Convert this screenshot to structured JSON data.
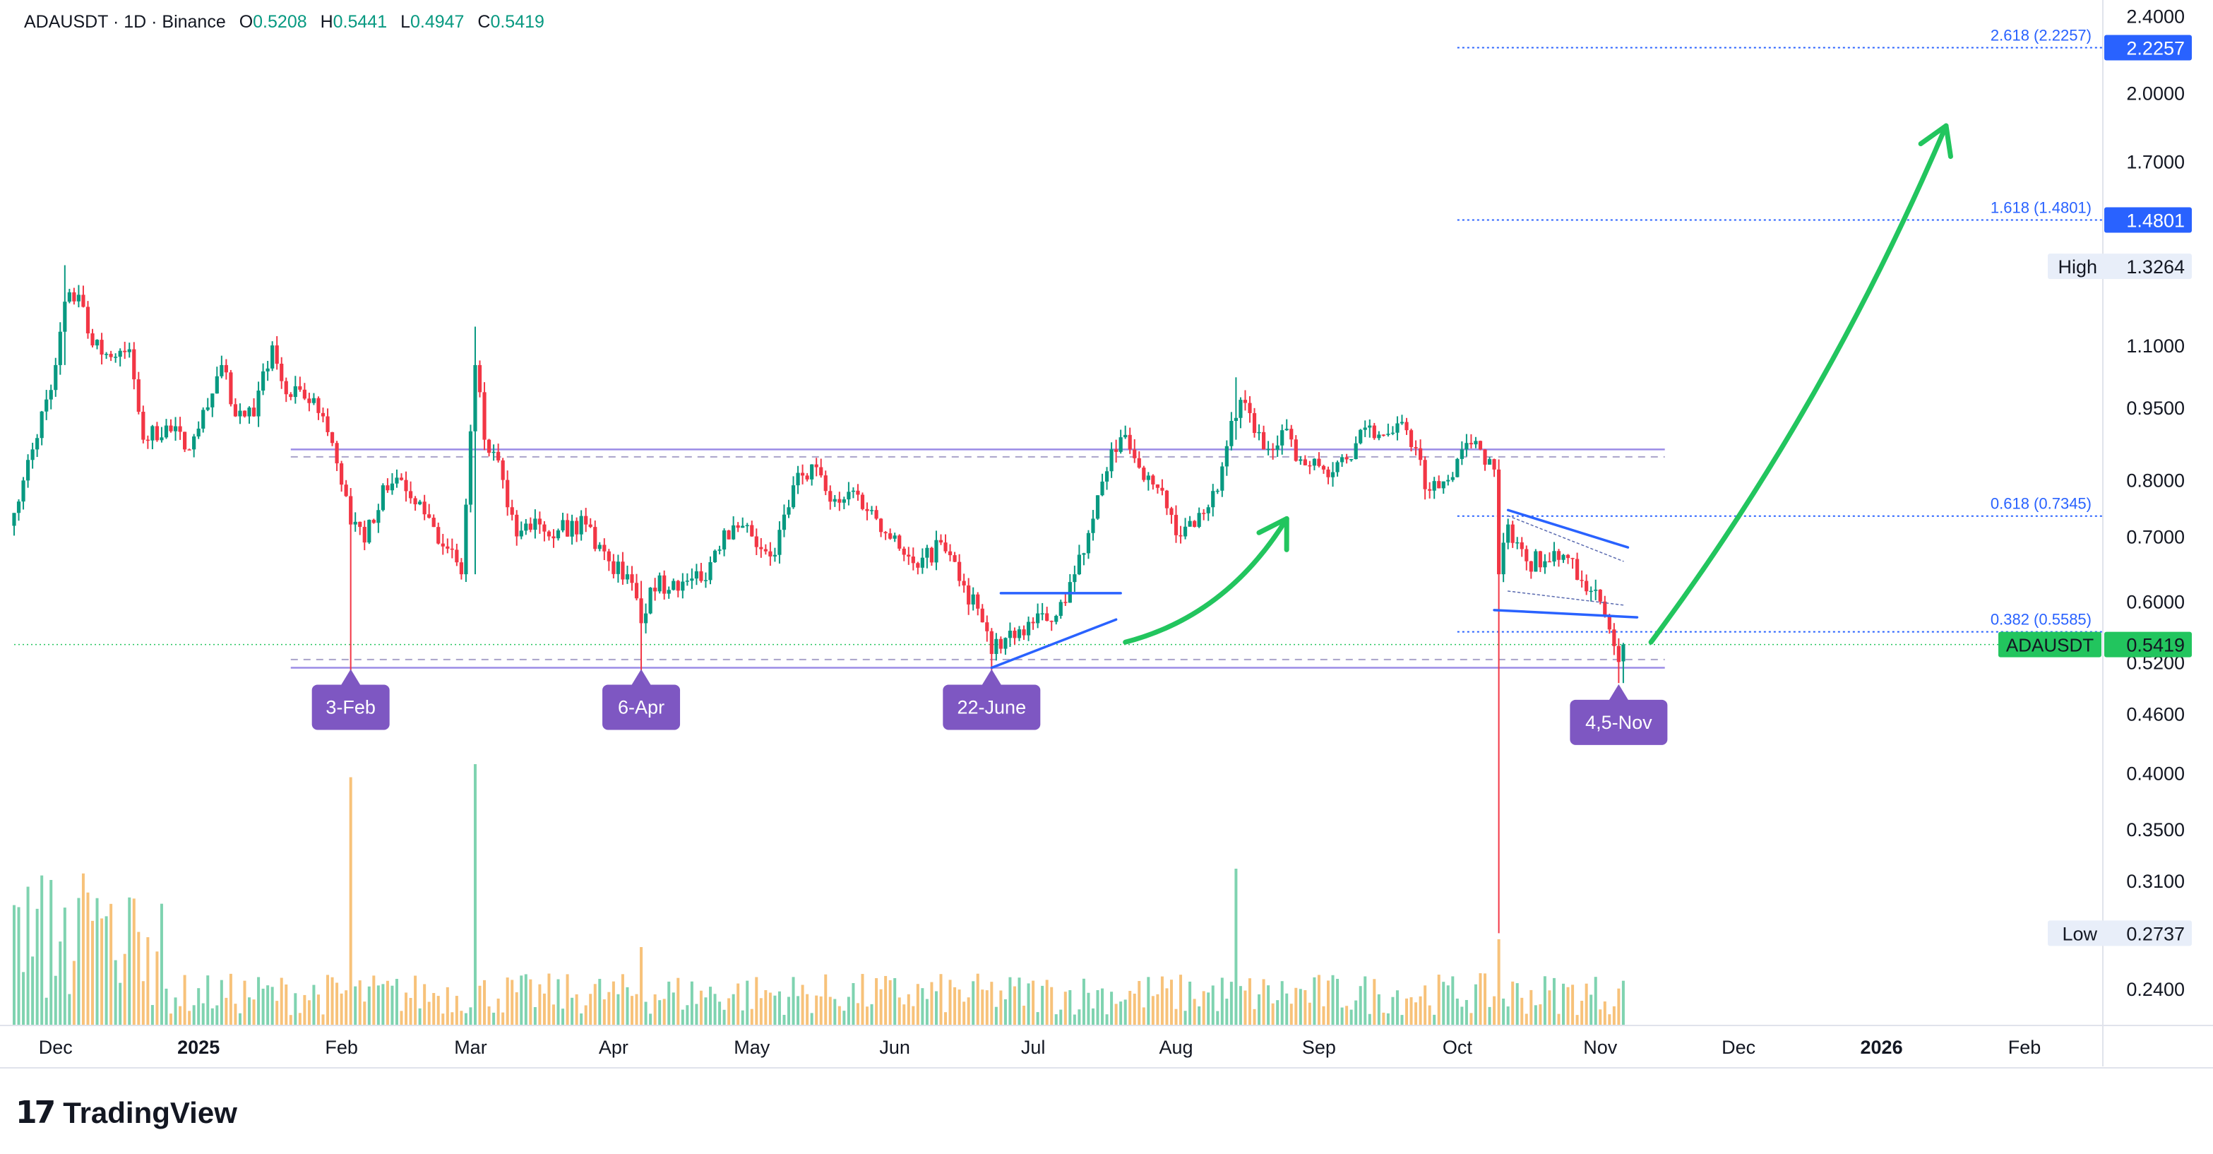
{
  "header": {
    "symbol": "ADAUSDT · 1D · Binance",
    "o_label": "O",
    "o_value": "0.5208",
    "h_label": "H",
    "h_value": "0.5441",
    "l_label": "L",
    "l_value": "0.4947",
    "c_label": "C",
    "c_value": "0.5419"
  },
  "brand": {
    "logo": "17",
    "name": "TradingView"
  },
  "colors": {
    "up": "#089981",
    "down": "#f23645",
    "vol_up": "#7fd3b0",
    "vol_down": "#f7c27a",
    "range_line": "#9b8ce6",
    "fib_line": "#2962ff",
    "marker": "#7e57c2",
    "green_arrow": "#22c55e",
    "price_tag": "#22c55e",
    "grid_text": "#131722"
  },
  "chart_data": {
    "type": "candlestick",
    "symbol": "ADAUSDT",
    "interval": "1D",
    "exchange": "Binance",
    "y_scale": "log",
    "ylim": [
      0.22,
      2.45
    ],
    "x_range": [
      "2024-11-22",
      "2026-02-18"
    ],
    "y_ticks": [
      "2.4000",
      "2.0000",
      "1.7000",
      "1.1000",
      "0.9500",
      "0.8000",
      "0.7000",
      "0.6000",
      "0.5200",
      "0.4600",
      "0.4000",
      "0.3500",
      "0.3100",
      "0.2400"
    ],
    "x_ticks": [
      {
        "date": "2024-12-01",
        "label": "Dec"
      },
      {
        "date": "2025-01-01",
        "label": "2025"
      },
      {
        "date": "2025-02-01",
        "label": "Feb"
      },
      {
        "date": "2025-03-01",
        "label": "Mar"
      },
      {
        "date": "2025-04-01",
        "label": "Apr"
      },
      {
        "date": "2025-05-01",
        "label": "May"
      },
      {
        "date": "2025-06-01",
        "label": "Jun"
      },
      {
        "date": "2025-07-01",
        "label": "Jul"
      },
      {
        "date": "2025-08-01",
        "label": "Aug"
      },
      {
        "date": "2025-09-01",
        "label": "Sep"
      },
      {
        "date": "2025-10-01",
        "label": "Oct"
      },
      {
        "date": "2025-11-01",
        "label": "Nov"
      },
      {
        "date": "2025-12-01",
        "label": "Dec"
      },
      {
        "date": "2026-01-01",
        "label": "2026"
      },
      {
        "date": "2026-02-01",
        "label": "Feb"
      }
    ],
    "close_anchors": [
      {
        "date": "2024-11-22",
        "close": 0.74
      },
      {
        "date": "2024-11-26",
        "close": 0.86
      },
      {
        "date": "2024-12-01",
        "close": 1.05
      },
      {
        "date": "2024-12-03",
        "close": 1.22
      },
      {
        "date": "2024-12-06",
        "close": 1.24
      },
      {
        "date": "2024-12-09",
        "close": 1.1
      },
      {
        "date": "2024-12-13",
        "close": 1.07
      },
      {
        "date": "2024-12-17",
        "close": 1.09
      },
      {
        "date": "2024-12-20",
        "close": 0.88
      },
      {
        "date": "2024-12-25",
        "close": 0.91
      },
      {
        "date": "2024-12-30",
        "close": 0.86
      },
      {
        "date": "2025-01-03",
        "close": 0.95
      },
      {
        "date": "2025-01-06",
        "close": 1.05
      },
      {
        "date": "2025-01-09",
        "close": 0.93
      },
      {
        "date": "2025-01-13",
        "close": 0.93
      },
      {
        "date": "2025-01-17",
        "close": 1.1
      },
      {
        "date": "2025-01-20",
        "close": 0.98
      },
      {
        "date": "2025-01-24",
        "close": 0.97
      },
      {
        "date": "2025-01-28",
        "close": 0.93
      },
      {
        "date": "2025-02-02",
        "close": 0.77
      },
      {
        "date": "2025-02-03",
        "close": 0.72
      },
      {
        "date": "2025-02-06",
        "close": 0.69
      },
      {
        "date": "2025-02-10",
        "close": 0.79
      },
      {
        "date": "2025-02-14",
        "close": 0.8
      },
      {
        "date": "2025-02-18",
        "close": 0.76
      },
      {
        "date": "2025-02-24",
        "close": 0.68
      },
      {
        "date": "2025-02-27",
        "close": 0.64
      },
      {
        "date": "2025-03-02",
        "close": 1.05
      },
      {
        "date": "2025-03-04",
        "close": 0.88
      },
      {
        "date": "2025-03-08",
        "close": 0.8
      },
      {
        "date": "2025-03-11",
        "close": 0.7
      },
      {
        "date": "2025-03-15",
        "close": 0.73
      },
      {
        "date": "2025-03-20",
        "close": 0.71
      },
      {
        "date": "2025-03-26",
        "close": 0.72
      },
      {
        "date": "2025-03-31",
        "close": 0.66
      },
      {
        "date": "2025-04-04",
        "close": 0.64
      },
      {
        "date": "2025-04-07",
        "close": 0.57
      },
      {
        "date": "2025-04-09",
        "close": 0.62
      },
      {
        "date": "2025-04-14",
        "close": 0.63
      },
      {
        "date": "2025-04-20",
        "close": 0.63
      },
      {
        "date": "2025-04-25",
        "close": 0.71
      },
      {
        "date": "2025-05-01",
        "close": 0.7
      },
      {
        "date": "2025-05-06",
        "close": 0.67
      },
      {
        "date": "2025-05-10",
        "close": 0.79
      },
      {
        "date": "2025-05-14",
        "close": 0.83
      },
      {
        "date": "2025-05-18",
        "close": 0.76
      },
      {
        "date": "2025-05-23",
        "close": 0.78
      },
      {
        "date": "2025-05-28",
        "close": 0.73
      },
      {
        "date": "2025-06-02",
        "close": 0.68
      },
      {
        "date": "2025-06-06",
        "close": 0.65
      },
      {
        "date": "2025-06-11",
        "close": 0.69
      },
      {
        "date": "2025-06-15",
        "close": 0.63
      },
      {
        "date": "2025-06-19",
        "close": 0.59
      },
      {
        "date": "2025-06-22",
        "close": 0.53
      },
      {
        "date": "2025-06-26",
        "close": 0.56
      },
      {
        "date": "2025-07-01",
        "close": 0.57
      },
      {
        "date": "2025-07-06",
        "close": 0.58
      },
      {
        "date": "2025-07-10",
        "close": 0.64
      },
      {
        "date": "2025-07-14",
        "close": 0.73
      },
      {
        "date": "2025-07-18",
        "close": 0.86
      },
      {
        "date": "2025-07-21",
        "close": 0.89
      },
      {
        "date": "2025-07-25",
        "close": 0.8
      },
      {
        "date": "2025-07-29",
        "close": 0.78
      },
      {
        "date": "2025-08-02",
        "close": 0.7
      },
      {
        "date": "2025-08-06",
        "close": 0.74
      },
      {
        "date": "2025-08-10",
        "close": 0.78
      },
      {
        "date": "2025-08-13",
        "close": 0.92
      },
      {
        "date": "2025-08-16",
        "close": 0.96
      },
      {
        "date": "2025-08-20",
        "close": 0.86
      },
      {
        "date": "2025-08-24",
        "close": 0.9
      },
      {
        "date": "2025-08-28",
        "close": 0.84
      },
      {
        "date": "2025-09-02",
        "close": 0.82
      },
      {
        "date": "2025-09-07",
        "close": 0.84
      },
      {
        "date": "2025-09-12",
        "close": 0.91
      },
      {
        "date": "2025-09-15",
        "close": 0.89
      },
      {
        "date": "2025-09-20",
        "close": 0.9
      },
      {
        "date": "2025-09-25",
        "close": 0.78
      },
      {
        "date": "2025-09-29",
        "close": 0.8
      },
      {
        "date": "2025-10-02",
        "close": 0.86
      },
      {
        "date": "2025-10-06",
        "close": 0.86
      },
      {
        "date": "2025-10-09",
        "close": 0.82
      },
      {
        "date": "2025-10-10",
        "close": 0.64
      },
      {
        "date": "2025-10-12",
        "close": 0.72
      },
      {
        "date": "2025-10-16",
        "close": 0.66
      },
      {
        "date": "2025-10-20",
        "close": 0.66
      },
      {
        "date": "2025-10-24",
        "close": 0.67
      },
      {
        "date": "2025-10-28",
        "close": 0.63
      },
      {
        "date": "2025-11-01",
        "close": 0.6
      },
      {
        "date": "2025-11-04",
        "close": 0.54
      },
      {
        "date": "2025-11-05",
        "close": 0.52
      },
      {
        "date": "2025-11-06",
        "close": 0.5419
      }
    ],
    "spikes": [
      {
        "date": "2024-12-03",
        "high": 1.33,
        "low": 1.05
      },
      {
        "date": "2025-02-03",
        "high": 0.77,
        "low": 0.51
      },
      {
        "date": "2025-03-02",
        "high": 1.15,
        "low": 0.64
      },
      {
        "date": "2025-04-07",
        "high": 0.63,
        "low": 0.51
      },
      {
        "date": "2025-06-22",
        "high": 0.56,
        "low": 0.51
      },
      {
        "date": "2025-08-14",
        "high": 1.02,
        "low": 0.88
      },
      {
        "date": "2025-10-10",
        "high": 0.82,
        "low": 0.2737
      },
      {
        "date": "2025-11-05",
        "high": 0.55,
        "low": 0.4947
      }
    ],
    "volume_spikes": [
      {
        "date": "2025-02-03",
        "level": 0.95
      },
      {
        "date": "2025-03-02",
        "level": 1.0
      },
      {
        "date": "2025-04-07",
        "level": 0.3
      },
      {
        "date": "2025-08-14",
        "level": 0.6
      },
      {
        "date": "2025-10-10",
        "level": 0.33
      }
    ],
    "ohlc_last": {
      "open": 0.5208,
      "high": 0.5441,
      "low": 0.4947,
      "close": 0.5419
    },
    "horizontal_levels": [
      {
        "price": 0.86,
        "style": "solid",
        "from": "2025-01-21",
        "to": "2025-11-15"
      },
      {
        "price": 0.845,
        "style": "dashed",
        "from": "2025-01-21",
        "to": "2025-11-15"
      },
      {
        "price": 0.513,
        "style": "solid",
        "from": "2025-01-21",
        "to": "2025-11-15"
      },
      {
        "price": 0.523,
        "style": "dashed",
        "from": "2025-01-21",
        "to": "2025-11-15"
      }
    ],
    "fib_levels": [
      {
        "label": "2.618 (2.2257)",
        "price": 2.2257
      },
      {
        "label": "1.618 (1.4801)",
        "price": 1.4801
      },
      {
        "label": "0.618 (0.7345)",
        "price": 0.7345
      },
      {
        "label": "0.382 (0.5585)",
        "price": 0.5585
      }
    ],
    "price_tags": [
      {
        "label": "",
        "value": "2.2257",
        "price": 2.2257,
        "style": "blue"
      },
      {
        "label": "",
        "value": "1.4801",
        "price": 1.4801,
        "style": "blue"
      },
      {
        "label": "High",
        "value": "1.3264",
        "price": 1.3264,
        "style": "light"
      },
      {
        "label": "ADAUSDT",
        "value": "0.5419",
        "price": 0.5419,
        "style": "green"
      },
      {
        "label": "Low",
        "value": "0.2737",
        "price": 0.2737,
        "style": "light"
      }
    ],
    "markers": [
      {
        "label": "3-Feb",
        "date": "2025-02-03",
        "price": 0.513
      },
      {
        "label": "6-Apr",
        "date": "2025-04-07",
        "price": 0.513
      },
      {
        "label": "22-June",
        "date": "2025-06-22",
        "price": 0.513
      },
      {
        "label": "4,5-Nov",
        "date": "2025-11-05",
        "price": 0.495
      }
    ],
    "trendlines": [
      {
        "from": [
          "2025-06-22",
          0.513
        ],
        "to": [
          "2025-07-19",
          0.575
        ],
        "style": "blue"
      },
      {
        "from": [
          "2025-06-24",
          0.612
        ],
        "to": [
          "2025-07-20",
          0.612
        ],
        "style": "blue"
      },
      {
        "from": [
          "2025-10-12",
          0.745
        ],
        "to": [
          "2025-11-07",
          0.682
        ],
        "style": "blue"
      },
      {
        "from": [
          "2025-10-09",
          0.588
        ],
        "to": [
          "2025-11-09",
          0.578
        ],
        "style": "blue"
      },
      {
        "from": [
          "2025-10-12",
          0.735
        ],
        "to": [
          "2025-11-06",
          0.66
        ],
        "style": "dotted"
      },
      {
        "from": [
          "2025-10-12",
          0.615
        ],
        "to": [
          "2025-11-06",
          0.595
        ],
        "style": "dotted"
      }
    ],
    "arrows": [
      {
        "points": [
          [
            "2025-07-21",
            0.545
          ],
          [
            "2025-08-12",
            0.58
          ],
          [
            "2025-08-25",
            0.73
          ]
        ]
      },
      {
        "points": [
          [
            "2025-11-12",
            0.545
          ],
          [
            "2025-12-20",
            0.95
          ],
          [
            "2026-01-15",
            1.85
          ]
        ]
      }
    ],
    "watermark": "TradingView"
  }
}
